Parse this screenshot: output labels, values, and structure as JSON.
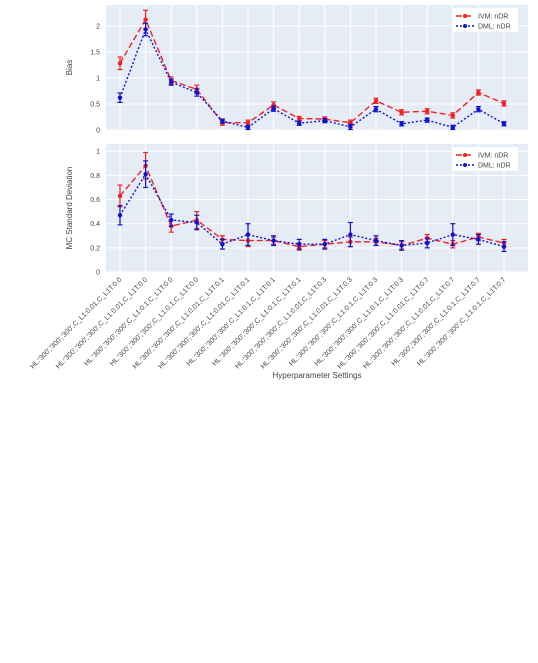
{
  "chart_data": [
    {
      "type": "line",
      "ylabel": "Bias",
      "ylim": [
        0,
        2.4
      ],
      "yticks": [
        0,
        0.5,
        1,
        1.5,
        2
      ],
      "ytick_labels": [
        "0",
        "0.5",
        "1",
        "1.5",
        "2"
      ],
      "grid": true,
      "legend_position": "top-right",
      "series": [
        {
          "name": "IVM: nDR",
          "color": "#ee2222",
          "line_style": "dashed",
          "values": [
            1.28,
            2.12,
            0.95,
            0.78,
            0.14,
            0.14,
            0.48,
            0.22,
            0.21,
            0.14,
            0.56,
            0.34,
            0.36,
            0.28,
            0.72,
            0.51
          ],
          "errors": [
            0.12,
            0.18,
            0.07,
            0.08,
            0.05,
            0.05,
            0.06,
            0.04,
            0.04,
            0.05,
            0.05,
            0.05,
            0.05,
            0.05,
            0.05,
            0.05
          ]
        },
        {
          "name": "DML: nDR",
          "color": "#1111cc",
          "line_style": "dotted",
          "values": [
            0.62,
            1.93,
            0.92,
            0.72,
            0.17,
            0.05,
            0.41,
            0.13,
            0.18,
            0.06,
            0.4,
            0.12,
            0.19,
            0.05,
            0.4,
            0.12
          ],
          "errors": [
            0.09,
            0.12,
            0.06,
            0.07,
            0.04,
            0.04,
            0.05,
            0.04,
            0.04,
            0.05,
            0.05,
            0.04,
            0.04,
            0.04,
            0.05,
            0.04
          ]
        }
      ]
    },
    {
      "type": "line",
      "ylabel": "MC Standard Deviation",
      "xlabel": "Hyperparameter Settings",
      "ylim": [
        0,
        1.06
      ],
      "yticks": [
        0,
        0.2,
        0.4,
        0.6,
        0.8,
        1
      ],
      "ytick_labels": [
        "0",
        "0.2",
        "0.4",
        "0.6",
        "0.8",
        "1"
      ],
      "grid": true,
      "legend_position": "top-right",
      "categories": [
        "HL:'300','300','300',C_L1:0.01,C_L1T:0.0",
        "HL:'300','300','300',C_L1:0.01,C_L1T:0.0",
        "HL:'300','300','300',C_L1:0.1,C_L1T:0.0",
        "HL:'300','300','300',C_L1:0.1,C_L1T:0.0",
        "HL:'300','300','300',C_L1:0.01,C_L1T:0.1",
        "HL:'300','300','300',C_L1:0.01,C_L1T:0.1",
        "HL:'300','300','300',C_L1:0.1,C_L1T:0.1",
        "HL:'300','300','300',C_L1:0.1,C_L1T:0.1",
        "HL:'300','300','300',C_L1:0.01,C_L1T:0.3",
        "HL:'300','300','300',C_L1:0.01,C_L1T:0.3",
        "HL:'300','300','300',C_L1:0.1,C_L1T:0.3",
        "HL:'300','300','300',C_L1:0.1,C_L1T:0.3",
        "HL:'300','300','300',C_L1:0.01,C_L1T:0.7",
        "HL:'300','300','300',C_L1:0.01,C_L1T:0.7",
        "HL:'300','300','300',C_L1:0.1,C_L1T:0.7",
        "HL:'300','300','300',C_L1:0.1,C_L1T:0.7"
      ],
      "series": [
        {
          "name": "IVM: nDR",
          "color": "#ee2222",
          "line_style": "dashed",
          "values": [
            0.63,
            0.88,
            0.38,
            0.43,
            0.27,
            0.26,
            0.26,
            0.21,
            0.23,
            0.25,
            0.25,
            0.22,
            0.28,
            0.23,
            0.29,
            0.24
          ],
          "errors": [
            0.09,
            0.11,
            0.05,
            0.07,
            0.03,
            0.05,
            0.03,
            0.03,
            0.03,
            0.04,
            0.03,
            0.03,
            0.03,
            0.03,
            0.03,
            0.03
          ]
        },
        {
          "name": "DML: nDR",
          "color": "#1111cc",
          "line_style": "dotted",
          "values": [
            0.47,
            0.81,
            0.43,
            0.41,
            0.23,
            0.31,
            0.26,
            0.23,
            0.23,
            0.31,
            0.26,
            0.22,
            0.24,
            0.31,
            0.27,
            0.21
          ],
          "errors": [
            0.08,
            0.11,
            0.05,
            0.06,
            0.04,
            0.09,
            0.04,
            0.04,
            0.04,
            0.1,
            0.04,
            0.04,
            0.04,
            0.09,
            0.04,
            0.04
          ]
        }
      ]
    }
  ]
}
